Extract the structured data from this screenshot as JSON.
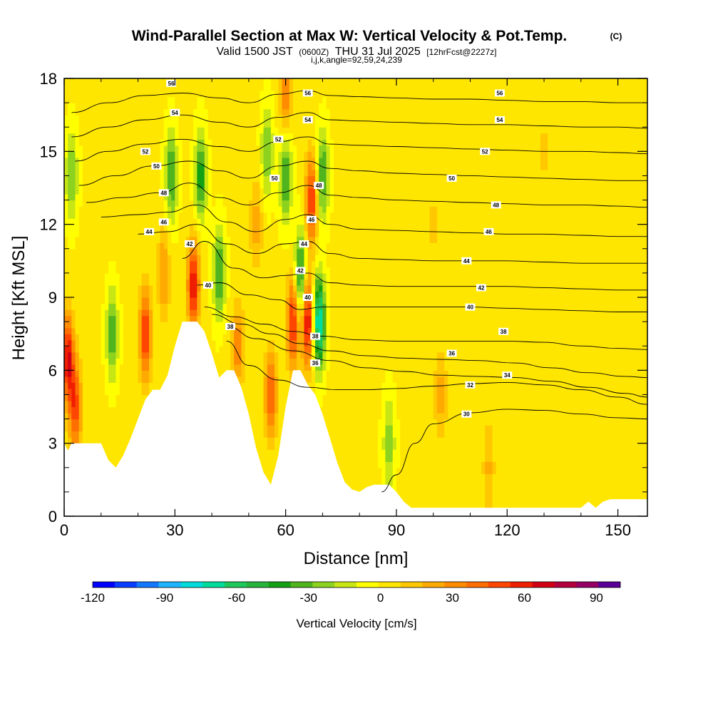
{
  "header": {
    "title": "Wind-Parallel Section at Max W: Vertical Velocity & Pot.Temp.",
    "copyright": "(C)",
    "valid_prefix": "Valid 1500 JST",
    "valid_utc": "(0600Z)",
    "valid_date": "THU 31 Jul 2025",
    "forecast": "[12hrFcst@2227z]",
    "params": "i,j,k,angle=92,59,24,239"
  },
  "colors": {
    "background": "#ffffff",
    "terrain_mask": "#ffffff",
    "contour": "#000000",
    "colorbar": [
      "#0000ff",
      "#0a3cff",
      "#1478ff",
      "#1eb4ff",
      "#00dcdc",
      "#00dc9c",
      "#1ec85a",
      "#28b43c",
      "#14a014",
      "#50b41e",
      "#8cd21e",
      "#c8e614",
      "#ffff00",
      "#ffe600",
      "#ffc800",
      "#ffaa00",
      "#ff8c00",
      "#ff6e00",
      "#ff4600",
      "#f01e00",
      "#d20014",
      "#b4003c",
      "#960064",
      "#5a0096"
    ]
  },
  "chart_data": {
    "type": "heatmap",
    "title": "Wind-Parallel Section at Max W: Vertical Velocity & Pot.Temp.",
    "xlabel": "Distance [nm]",
    "ylabel": "Height [Kft MSL]",
    "xlim": [
      0,
      158
    ],
    "ylim": [
      0,
      18
    ],
    "xticks": [
      0,
      30,
      60,
      90,
      120,
      150
    ],
    "yticks": [
      0,
      3,
      6,
      9,
      12,
      15,
      18
    ],
    "x_tick_labels": [
      "0",
      "30",
      "60",
      "90",
      "120",
      "150"
    ],
    "y_tick_labels": [
      "0",
      "3",
      "6",
      "9",
      "12",
      "15",
      "18"
    ],
    "colorbar": {
      "title": "Vertical Velocity [cm/s]",
      "min": -120,
      "max": 100,
      "step": 10,
      "ticks": [
        -120,
        -90,
        -60,
        -30,
        0,
        30,
        60,
        90
      ],
      "tick_labels": [
        "-120",
        "-90",
        "-60",
        "-30",
        "0",
        "30",
        "60",
        "90"
      ]
    },
    "terrain": {
      "x": [
        0,
        1,
        2,
        10,
        12,
        14,
        16,
        18,
        20,
        22,
        24,
        26,
        28,
        30,
        32,
        34,
        36,
        38,
        40,
        42,
        44,
        46,
        48,
        50,
        52,
        54,
        56,
        58,
        60,
        62,
        64,
        66,
        68,
        70,
        72,
        74,
        76,
        78,
        80,
        82,
        84,
        86,
        88,
        90,
        92,
        94,
        96,
        98,
        100,
        110,
        120,
        130,
        140,
        142,
        144,
        146,
        148,
        150,
        158
      ],
      "y": [
        3,
        2.7,
        3,
        3,
        2.3,
        2,
        2.5,
        3.2,
        4,
        4.8,
        5.2,
        5.2,
        5.8,
        7,
        8,
        8,
        8,
        7.6,
        6.7,
        5.7,
        6,
        6,
        5.3,
        4.2,
        2.8,
        1.8,
        1.3,
        2.5,
        4.5,
        6,
        6,
        5.4,
        5,
        4.2,
        3.2,
        2.2,
        1.4,
        1.1,
        1,
        1.2,
        1.3,
        1.3,
        1.3,
        1,
        0.6,
        0.35,
        0.35,
        0.35,
        0.35,
        0.35,
        0.35,
        0.35,
        0.35,
        0.6,
        0.35,
        0.6,
        0.7,
        0.7,
        0.7
      ]
    },
    "velocity_features": [
      {
        "x": 1,
        "y": 6.5,
        "w": 70
      },
      {
        "x": 3,
        "y": 4.5,
        "w": 55
      },
      {
        "x": 13,
        "y": 7.5,
        "w": -40
      },
      {
        "x": 22,
        "y": 7.5,
        "w": 60
      },
      {
        "x": 27,
        "y": 10,
        "w": 30
      },
      {
        "x": 29,
        "y": 14,
        "w": -45
      },
      {
        "x": 35,
        "y": 9.5,
        "w": 70
      },
      {
        "x": 37,
        "y": 14,
        "w": -50
      },
      {
        "x": 42,
        "y": 10,
        "w": -45
      },
      {
        "x": 47,
        "y": 7,
        "w": 35
      },
      {
        "x": 52,
        "y": 12,
        "w": 25
      },
      {
        "x": 55,
        "y": 15,
        "w": -35
      },
      {
        "x": 56,
        "y": 5,
        "w": 50
      },
      {
        "x": 60,
        "y": 14,
        "w": -45
      },
      {
        "x": 62,
        "y": 8,
        "w": 65
      },
      {
        "x": 64,
        "y": 10,
        "w": -55
      },
      {
        "x": 66,
        "y": 8,
        "w": 75
      },
      {
        "x": 67,
        "y": 13,
        "w": 60
      },
      {
        "x": 69,
        "y": 8,
        "w": -90
      },
      {
        "x": 70,
        "y": 14,
        "w": -45
      },
      {
        "x": 60,
        "y": 17.5,
        "w": 40
      },
      {
        "x": 88,
        "y": 3,
        "w": -30
      },
      {
        "x": 102,
        "y": 5,
        "w": 25
      },
      {
        "x": 115,
        "y": 2,
        "w": 20
      },
      {
        "x": 2,
        "y": 14,
        "w": -35
      },
      {
        "x": 100,
        "y": 12,
        "w": 10
      },
      {
        "x": 130,
        "y": 15,
        "w": 10
      }
    ],
    "contours": [
      {
        "level": 30,
        "x": [
          86,
          90,
          95,
          100,
          110,
          120,
          130,
          140,
          150,
          158
        ],
        "y": [
          1.0,
          1.7,
          3.0,
          3.8,
          4.25,
          4.4,
          4.35,
          4.2,
          4.05,
          4.0
        ]
      },
      {
        "level": 32,
        "x": [
          44,
          50,
          58,
          66,
          74,
          82,
          90,
          100,
          110,
          120,
          130,
          140,
          150,
          158
        ],
        "y": [
          7.2,
          6.2,
          5.6,
          5.3,
          5.2,
          5.2,
          5.25,
          5.35,
          5.45,
          5.5,
          5.4,
          5.2,
          4.9,
          4.6
        ]
      },
      {
        "level": 34,
        "x": [
          44,
          52,
          62,
          72,
          82,
          92,
          102,
          112,
          122,
          132,
          142,
          152,
          158
        ],
        "y": [
          7.8,
          7.3,
          6.8,
          6.4,
          6.1,
          5.95,
          5.8,
          5.75,
          5.7,
          5.55,
          5.3,
          5.05,
          4.9
        ]
      },
      {
        "level": 36,
        "x": [
          40,
          48,
          56,
          64,
          72,
          82,
          92,
          102,
          112,
          122,
          132,
          142,
          152,
          158
        ],
        "y": [
          8.3,
          7.9,
          7.5,
          7.1,
          6.8,
          6.6,
          6.5,
          6.45,
          6.4,
          6.3,
          6.1,
          5.9,
          5.75,
          5.7
        ]
      },
      {
        "level": 38,
        "x": [
          38,
          46,
          54,
          62,
          70,
          80,
          90,
          100,
          110,
          120,
          130,
          140,
          150,
          158
        ],
        "y": [
          8.6,
          8.2,
          7.9,
          7.6,
          7.4,
          7.25,
          7.2,
          7.2,
          7.2,
          7.2,
          7.15,
          7.0,
          6.9,
          6.85
        ]
      },
      {
        "level": 40,
        "x": [
          36,
          42,
          50,
          58,
          64,
          70,
          80,
          90,
          100,
          110,
          120,
          130,
          140,
          150,
          158
        ],
        "y": [
          9.5,
          9.6,
          9.1,
          8.9,
          8.5,
          8.6,
          8.6,
          8.6,
          8.6,
          8.6,
          8.55,
          8.5,
          8.45,
          8.4,
          8.4
        ]
      },
      {
        "level": 42,
        "x": [
          32,
          38,
          46,
          54,
          60,
          66,
          72,
          80,
          90,
          100,
          110,
          120,
          130,
          140,
          150,
          158
        ],
        "y": [
          10.6,
          11.3,
          10.2,
          9.8,
          9.9,
          10.0,
          9.6,
          9.5,
          9.45,
          9.45,
          9.45,
          9.45,
          9.4,
          9.35,
          9.3,
          9.3
        ]
      },
      {
        "level": 44,
        "x": [
          20,
          28,
          36,
          44,
          52,
          60,
          66,
          72,
          80,
          90,
          100,
          110,
          120,
          130,
          140,
          150,
          158
        ],
        "y": [
          11.6,
          11.7,
          12.0,
          11.2,
          10.8,
          11.2,
          11.3,
          10.8,
          10.6,
          10.55,
          10.5,
          10.5,
          10.5,
          10.45,
          10.4,
          10.4,
          10.4
        ]
      },
      {
        "level": 46,
        "x": [
          10,
          20,
          28,
          36,
          44,
          52,
          60,
          66,
          72,
          80,
          90,
          100,
          110,
          120,
          130,
          140,
          150,
          158
        ],
        "y": [
          12.3,
          12.4,
          12.5,
          12.8,
          12.1,
          11.7,
          12.2,
          12.4,
          12.0,
          11.8,
          11.75,
          11.7,
          11.65,
          11.6,
          11.6,
          11.55,
          11.5,
          11.5
        ]
      },
      {
        "level": 48,
        "x": [
          6,
          16,
          26,
          34,
          42,
          50,
          58,
          66,
          72,
          80,
          90,
          100,
          110,
          120,
          130,
          140,
          150,
          158
        ],
        "y": [
          12.9,
          13.1,
          13.3,
          13.7,
          13.1,
          12.8,
          13.3,
          13.6,
          13.2,
          13.1,
          13.0,
          12.95,
          12.9,
          12.85,
          12.8,
          12.8,
          12.75,
          12.7
        ]
      },
      {
        "level": 50,
        "x": [
          4,
          14,
          24,
          34,
          42,
          50,
          58,
          66,
          72,
          80,
          90,
          100,
          110,
          120,
          130,
          140,
          150,
          158
        ],
        "y": [
          13.6,
          14.0,
          14.4,
          14.6,
          14.2,
          13.9,
          14.4,
          14.6,
          14.3,
          14.2,
          14.1,
          14.05,
          14.0,
          13.95,
          13.9,
          13.85,
          13.8,
          13.8
        ]
      },
      {
        "level": 52,
        "x": [
          3,
          12,
          22,
          32,
          42,
          50,
          58,
          66,
          72,
          80,
          90,
          100,
          110,
          120,
          130,
          140,
          150,
          158
        ],
        "y": [
          14.6,
          15.0,
          15.3,
          15.5,
          15.2,
          15.0,
          15.4,
          15.6,
          15.3,
          15.25,
          15.2,
          15.15,
          15.1,
          15.05,
          15.0,
          15.0,
          14.95,
          14.9
        ]
      },
      {
        "level": 54,
        "x": [
          2,
          12,
          22,
          32,
          42,
          50,
          58,
          66,
          72,
          80,
          90,
          100,
          110,
          120,
          130,
          140,
          150,
          158
        ],
        "y": [
          15.6,
          16.0,
          16.3,
          16.5,
          16.2,
          16.0,
          16.4,
          16.6,
          16.3,
          16.25,
          16.2,
          16.15,
          16.1,
          16.1,
          16.05,
          16.0,
          16.0,
          15.95
        ]
      },
      {
        "level": 56,
        "x": [
          2,
          12,
          22,
          32,
          42,
          50,
          58,
          66,
          72,
          80,
          90,
          100,
          110,
          120,
          130,
          140,
          150,
          158
        ],
        "y": [
          16.6,
          17.0,
          17.3,
          17.4,
          17.2,
          17.0,
          17.35,
          17.5,
          17.3,
          17.25,
          17.2,
          17.15,
          17.15,
          17.1,
          17.05,
          17.05,
          17.0,
          17.0
        ]
      }
    ],
    "contour_labels": [
      {
        "text": "56",
        "x": 29,
        "y": 17.8
      },
      {
        "text": "54",
        "x": 30,
        "y": 16.6
      },
      {
        "text": "52",
        "x": 22,
        "y": 15.0
      },
      {
        "text": "50",
        "x": 25,
        "y": 14.4
      },
      {
        "text": "48",
        "x": 27,
        "y": 13.3
      },
      {
        "text": "46",
        "x": 27,
        "y": 12.1
      },
      {
        "text": "44",
        "x": 23,
        "y": 11.7
      },
      {
        "text": "42",
        "x": 34,
        "y": 11.2
      },
      {
        "text": "40",
        "x": 39,
        "y": 9.5
      },
      {
        "text": "38",
        "x": 45,
        "y": 7.8
      },
      {
        "text": "56",
        "x": 66,
        "y": 17.4
      },
      {
        "text": "54",
        "x": 66,
        "y": 16.3
      },
      {
        "text": "52",
        "x": 58,
        "y": 15.5
      },
      {
        "text": "50",
        "x": 57,
        "y": 13.9
      },
      {
        "text": "48",
        "x": 69,
        "y": 13.6
      },
      {
        "text": "46",
        "x": 67,
        "y": 12.2
      },
      {
        "text": "44",
        "x": 65,
        "y": 11.2
      },
      {
        "text": "42",
        "x": 64,
        "y": 10.1
      },
      {
        "text": "40",
        "x": 66,
        "y": 9.0
      },
      {
        "text": "38",
        "x": 68,
        "y": 7.4
      },
      {
        "text": "36",
        "x": 68,
        "y": 6.3
      },
      {
        "text": "56",
        "x": 118,
        "y": 17.4
      },
      {
        "text": "54",
        "x": 118,
        "y": 16.3
      },
      {
        "text": "52",
        "x": 114,
        "y": 15.0
      },
      {
        "text": "50",
        "x": 105,
        "y": 13.9
      },
      {
        "text": "48",
        "x": 117,
        "y": 12.8
      },
      {
        "text": "46",
        "x": 115,
        "y": 11.7
      },
      {
        "text": "44",
        "x": 109,
        "y": 10.5
      },
      {
        "text": "42",
        "x": 113,
        "y": 9.4
      },
      {
        "text": "40",
        "x": 110,
        "y": 8.6
      },
      {
        "text": "38",
        "x": 119,
        "y": 7.6
      },
      {
        "text": "36",
        "x": 105,
        "y": 6.7
      },
      {
        "text": "34",
        "x": 120,
        "y": 5.8
      },
      {
        "text": "32",
        "x": 110,
        "y": 5.4
      },
      {
        "text": "30",
        "x": 109,
        "y": 4.2
      }
    ]
  }
}
